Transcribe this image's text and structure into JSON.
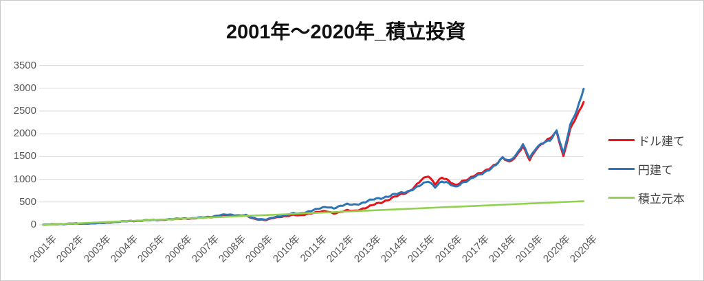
{
  "title": "2001年～2020年_積立投資",
  "chart_data": {
    "type": "line",
    "title": "2001年～2020年_積立投資",
    "xlabel": "",
    "ylabel": "",
    "ylim": [
      0,
      3500
    ],
    "y_ticks": [
      0,
      500,
      1000,
      1500,
      2000,
      2500,
      3000,
      3500
    ],
    "x_tick_labels": [
      "2001年",
      "2002年",
      "2003年",
      "2004年",
      "2005年",
      "2006年",
      "2007年",
      "2008年",
      "2009年",
      "2010年",
      "2011年",
      "2012年",
      "2013年",
      "2014年",
      "2015年",
      "2016年",
      "2017年",
      "2018年",
      "2019年",
      "2020年",
      "2020年"
    ],
    "grid": "horizontal-only",
    "legend_position": "right",
    "axis_text_color": "#595959",
    "gridline_color": "#d9d9d9",
    "x_start_year": 2001,
    "x_end_year": 2021,
    "x_step_years": 0.25,
    "series": [
      {
        "name": "ドル建て",
        "color": "#e8121a",
        "values": [
          2,
          8,
          13,
          15,
          26,
          30,
          27,
          31,
          38,
          43,
          56,
          66,
          78,
          84,
          88,
          96,
          103,
          106,
          114,
          121,
          130,
          139,
          135,
          149,
          161,
          172,
          196,
          215,
          212,
          196,
          201,
          138,
          116,
          106,
          146,
          172,
          196,
          218,
          202,
          234,
          268,
          288,
          296,
          252,
          282,
          316,
          305,
          342,
          385,
          448,
          492,
          548,
          610,
          668,
          722,
          838,
          985,
          1075,
          905,
          1040,
          960,
          872,
          958,
          1002,
          1095,
          1165,
          1235,
          1320,
          1475,
          1390,
          1500,
          1720,
          1430,
          1680,
          1790,
          1900,
          2050,
          1500,
          2090,
          2400,
          2700
        ]
      },
      {
        "name": "円建て",
        "color": "#2e75b6",
        "values": [
          2,
          8,
          14,
          16,
          25,
          29,
          26,
          30,
          36,
          41,
          54,
          65,
          77,
          83,
          88,
          97,
          102,
          107,
          116,
          124,
          134,
          144,
          141,
          156,
          169,
          181,
          206,
          226,
          221,
          205,
          210,
          148,
          127,
          117,
          158,
          188,
          222,
          252,
          242,
          282,
          330,
          362,
          390,
          368,
          415,
          448,
          442,
          470,
          520,
          562,
          588,
          625,
          668,
          700,
          738,
          802,
          880,
          960,
          838,
          952,
          905,
          835,
          922,
          972,
          1068,
          1135,
          1210,
          1305,
          1480,
          1415,
          1530,
          1760,
          1475,
          1702,
          1800,
          1845,
          2075,
          1565,
          2180,
          2520,
          2990
        ]
      },
      {
        "name": "積立元本",
        "color": "#92d050",
        "x_step_years": 1,
        "values": [
          0,
          26,
          52,
          78,
          104,
          130,
          156,
          182,
          208,
          234,
          260,
          286,
          312,
          338,
          364,
          390,
          416,
          442,
          468,
          494,
          520
        ]
      }
    ]
  },
  "legend": {
    "items": [
      {
        "label": "ドル建て",
        "color": "#e8121a"
      },
      {
        "label": "円建て",
        "color": "#2e75b6"
      },
      {
        "label": "積立元本",
        "color": "#92d050"
      }
    ]
  }
}
